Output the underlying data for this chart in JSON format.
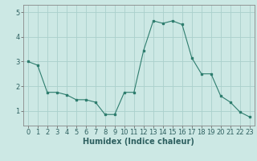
{
  "x": [
    0,
    1,
    2,
    3,
    4,
    5,
    6,
    7,
    8,
    9,
    10,
    11,
    12,
    13,
    14,
    15,
    16,
    17,
    18,
    19,
    20,
    21,
    22,
    23
  ],
  "y": [
    3.0,
    2.85,
    1.75,
    1.75,
    1.65,
    1.45,
    1.45,
    1.35,
    0.85,
    0.85,
    1.75,
    1.75,
    3.45,
    4.65,
    4.55,
    4.65,
    4.5,
    3.15,
    2.5,
    2.5,
    1.6,
    1.35,
    0.95,
    0.75
  ],
  "line_color": "#2e7d6e",
  "marker": "s",
  "marker_size": 2,
  "bg_color": "#cce8e4",
  "grid_color": "#aad0cc",
  "xlabel": "Humidex (Indice chaleur)",
  "xlabel_fontsize": 7,
  "tick_fontsize": 6,
  "ylim": [
    0.4,
    5.3
  ],
  "xlim": [
    -0.5,
    23.5
  ],
  "yticks": [
    1,
    2,
    3,
    4,
    5
  ],
  "xticks": [
    0,
    1,
    2,
    3,
    4,
    5,
    6,
    7,
    8,
    9,
    10,
    11,
    12,
    13,
    14,
    15,
    16,
    17,
    18,
    19,
    20,
    21,
    22,
    23
  ]
}
